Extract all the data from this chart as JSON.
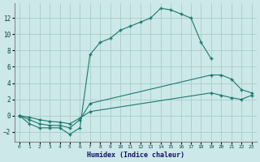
{
  "xlabel": "Humidex (Indice chaleur)",
  "bg_color": "#cce8e8",
  "grid_color": "#aacccc",
  "line_color": "#1a7a6e",
  "xlim": [
    -0.5,
    23.5
  ],
  "ylim": [
    -3.2,
    13.8
  ],
  "xticks": [
    0,
    1,
    2,
    3,
    4,
    5,
    6,
    7,
    8,
    9,
    10,
    11,
    12,
    13,
    14,
    15,
    16,
    17,
    18,
    19,
    20,
    21,
    22,
    23
  ],
  "yticks": [
    -2,
    0,
    2,
    4,
    6,
    8,
    10,
    12
  ],
  "line1": {
    "x": [
      0,
      1,
      2,
      3,
      4,
      5,
      6,
      7,
      8,
      9,
      10,
      11,
      12,
      13,
      14,
      15,
      16,
      17,
      18,
      19
    ],
    "y": [
      0,
      -1.0,
      -1.5,
      -1.5,
      -1.5,
      -2.3,
      -1.5,
      7.5,
      9.0,
      9.5,
      10.5,
      11.0,
      11.5,
      12.0,
      13.2,
      13.0,
      12.5,
      12.0,
      9.0,
      7.0
    ]
  },
  "line2": {
    "x": [
      0,
      1,
      2,
      3,
      4,
      5,
      6,
      7,
      19,
      20,
      21,
      22,
      23
    ],
    "y": [
      0,
      -0.5,
      -1.0,
      -1.2,
      -1.2,
      -1.5,
      -0.5,
      1.5,
      5.0,
      5.0,
      4.5,
      3.2,
      2.8
    ]
  },
  "line3": {
    "x": [
      0,
      1,
      2,
      3,
      4,
      5,
      6,
      7,
      19,
      20,
      21,
      22,
      23
    ],
    "y": [
      0,
      -0.2,
      -0.5,
      -0.7,
      -0.8,
      -1.0,
      -0.3,
      0.5,
      2.8,
      2.5,
      2.2,
      2.0,
      2.5
    ]
  }
}
